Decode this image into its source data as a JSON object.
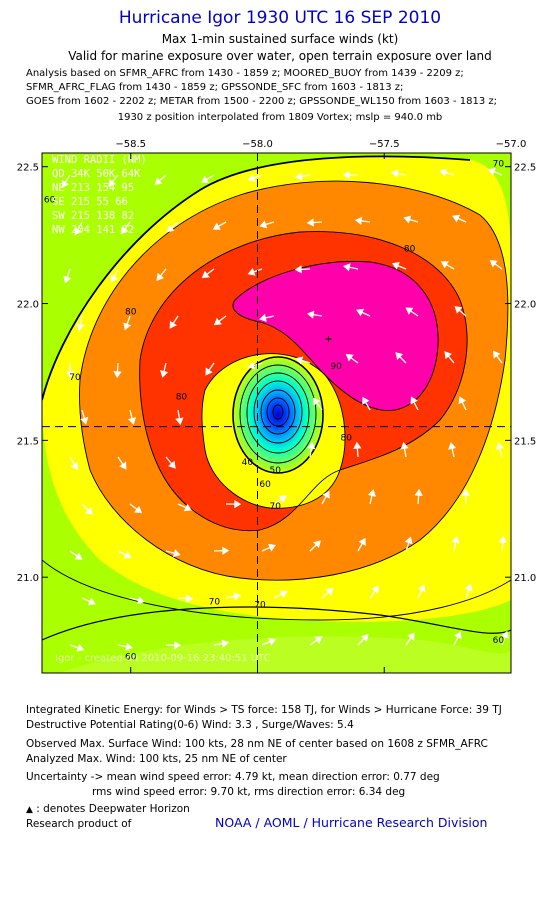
{
  "header": {
    "title": "Hurricane Igor 1930 UTC 16 SEP 2010",
    "subtitle1": "Max 1-min sustained surface winds (kt)",
    "subtitle2": "Valid for marine exposure over water, open terrain exposure over land",
    "analysis_line1": "Analysis based on SFMR_AFRC from 1430 - 1859 z; MOORED_BUOY from 1439 - 2209 z;",
    "analysis_line2": "SFMR_AFRC_FLAG from 1430 - 1859 z; GPSSONDE_SFC from 1603 - 1813 z;",
    "analysis_line3": "GOES from 1602 - 2202 z; METAR from 1500 - 2200 z; GPSSONDE_WL150 from 1603 - 1813 z;",
    "position_note": "1930 z position interpolated from 1809 Vortex; mslp = 940.0 mb"
  },
  "chart_data": {
    "type": "heatmap",
    "xlim": [
      -58.85,
      -57.0
    ],
    "ylim": [
      20.65,
      22.55
    ],
    "x_ticks": [
      -58.5,
      -58.0,
      -57.5,
      -57.0
    ],
    "x_tick_labels": [
      "−58.5",
      "−58.0",
      "−57.5",
      "−57.0"
    ],
    "y_ticks": [
      21.0,
      21.5,
      22.0,
      22.5
    ],
    "y_tick_labels": [
      "21.0",
      "21.5",
      "22.0",
      "22.5"
    ],
    "center": {
      "lon": -58.0,
      "lat": 21.55
    },
    "max_wind_marker": {
      "lon": -57.72,
      "lat": 21.87
    },
    "contour_levels_kt": [
      40,
      50,
      60,
      70,
      80,
      90
    ],
    "contour_labels": [
      {
        "text": "60",
        "lon": -58.82,
        "lat": 22.37
      },
      {
        "text": "70",
        "lon": -58.72,
        "lat": 21.72
      },
      {
        "text": "80",
        "lon": -58.5,
        "lat": 21.96
      },
      {
        "text": "80",
        "lon": -58.3,
        "lat": 21.65
      },
      {
        "text": "80",
        "lon": -57.4,
        "lat": 22.19
      },
      {
        "text": "80",
        "lon": -57.65,
        "lat": 21.5
      },
      {
        "text": "90",
        "lon": -57.69,
        "lat": 21.76
      },
      {
        "text": "40",
        "lon": -58.04,
        "lat": 21.41
      },
      {
        "text": "50",
        "lon": -57.93,
        "lat": 21.38
      },
      {
        "text": "60",
        "lon": -57.97,
        "lat": 21.33
      },
      {
        "text": "70",
        "lon": -57.93,
        "lat": 21.25
      },
      {
        "text": "70",
        "lon": -58.17,
        "lat": 20.9
      },
      {
        "text": "70",
        "lon": -57.99,
        "lat": 20.89
      },
      {
        "text": "70",
        "lon": -57.05,
        "lat": 22.5
      },
      {
        "text": "60",
        "lon": -58.5,
        "lat": 20.7
      },
      {
        "text": "60",
        "lon": -57.05,
        "lat": 20.76
      }
    ],
    "wind_radii": {
      "title": "WIND RADII (NM)",
      "header": "QD  34K  50K  64K",
      "rows": [
        "NE  213  154   95",
        "SE  215   55   66",
        "SW  215  138   82",
        "NW  204  141   82"
      ]
    },
    "watermark": "Igor - created on 2010-09-16 23:40:51 UTC"
  },
  "stats": {
    "ike_line": "Integrated Kinetic Energy:  for Winds > TS force: 158 TJ,  for Winds > Hurricane Force: 39 TJ",
    "dpr_line": "Destructive Potential Rating(0-6)   Wind: 3.3 , Surge/Waves: 5.4",
    "obs_line": "Observed Max. Surface Wind: 100 kts, 28 nm NE of center based on 1608 z SFMR_AFRC",
    "analyzed_line": "Analyzed Max. Wind: 100 kts, 25 nm NE of center",
    "uncert_line1": "Uncertainty -> mean wind speed error: 4.79 kt,   mean direction error: 0.77 deg",
    "uncert_line2": "rms wind speed error: 9.70 kt,   rms direction error: 6.34 deg",
    "legend_line": ": denotes Deepwater Horizon",
    "research_line": "Research product of",
    "noaa_link": "NOAA / AOML / Hurricane Research Division"
  },
  "colors": {
    "band_below_60": "#aaff00",
    "band_60_70": "#ffff00",
    "band_70_80": "#ff8800",
    "band_80_90": "#ff3300",
    "band_above_90": "#ff00aa",
    "link": "#0000cc"
  }
}
